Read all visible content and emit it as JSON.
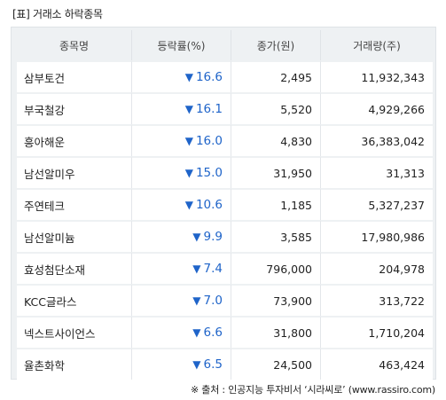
{
  "title": "[표] 거래소 하락종목",
  "headers": [
    "종목명",
    "등락률(%)",
    "종가(원)",
    "거래량(주)"
  ],
  "rows": [
    {
      "name": "삼부토건",
      "rate": "16.6",
      "close": "2,495",
      "volume": "11,932,343"
    },
    {
      "name": "부국철강",
      "rate": "16.1",
      "close": "5,520",
      "volume": "4,929,266"
    },
    {
      "name": "흥아해운",
      "rate": "16.0",
      "close": "4,830",
      "volume": "36,383,042"
    },
    {
      "name": "남선알미우",
      "rate": "15.0",
      "close": "31,950",
      "volume": "31,313"
    },
    {
      "name": "주연테크",
      "rate": "10.6",
      "close": "1,185",
      "volume": "5,327,237"
    },
    {
      "name": "남선알미늄",
      "rate": "9.9",
      "close": "3,585",
      "volume": "17,980,986"
    },
    {
      "name": "효성첨단소재",
      "rate": "7.4",
      "close": "796,000",
      "volume": "204,978"
    },
    {
      "name": "KCC글라스",
      "rate": "7.0",
      "close": "73,900",
      "volume": "313,722"
    },
    {
      "name": "넥스트사이언스",
      "rate": "6.6",
      "close": "31,800",
      "volume": "1,710,204"
    },
    {
      "name": "율촌화학",
      "rate": "6.5",
      "close": "24,500",
      "volume": "463,424"
    }
  ],
  "down_arrow": "▼",
  "source": "※ 출처 : 인공지능 투자비서 ‘시라씨로’ (www.rassiro.com)",
  "colors": {
    "down": "#1f64c9",
    "panel": "#eef1f3"
  }
}
